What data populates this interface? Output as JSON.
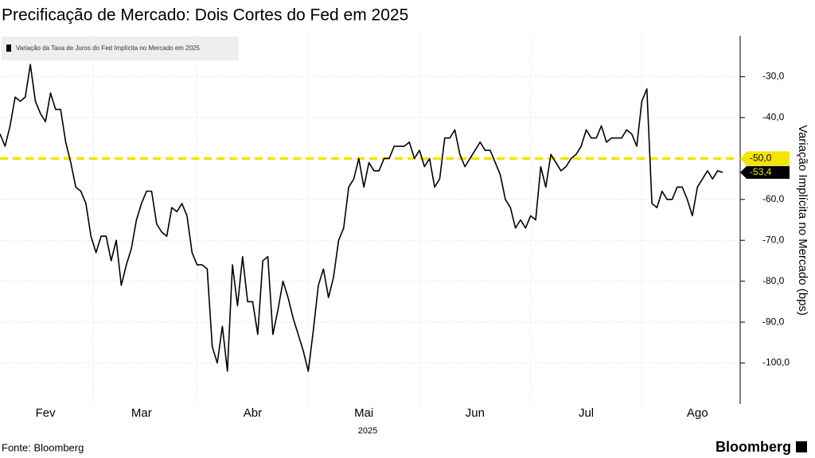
{
  "chart_data": {
    "type": "line",
    "title": "Precificação de Mercado: Dois Cortes do Fed em 2025",
    "y_label": "Variação Implícita no Mercado (bps)",
    "x_label": "2025",
    "source": "Fonte: Bloomberg",
    "brand": "Bloomberg",
    "categories": [
      null,
      null,
      null,
      null,
      null,
      null,
      null,
      null,
      null,
      "Fev",
      null,
      null,
      null,
      null,
      null,
      null,
      null,
      null,
      null,
      null,
      null,
      null,
      null,
      null,
      null,
      null,
      null,
      null,
      "Mar",
      null,
      null,
      null,
      null,
      null,
      null,
      null,
      null,
      null,
      null,
      null,
      null,
      null,
      null,
      null,
      null,
      null,
      null,
      null,
      null,
      null,
      "Abr",
      null,
      null,
      null,
      null,
      null,
      null,
      null,
      null,
      null,
      null,
      null,
      null,
      null,
      null,
      null,
      null,
      null,
      null,
      null,
      null,
      null,
      "Mai",
      null,
      null,
      null,
      null,
      null,
      null,
      null,
      null,
      null,
      null,
      null,
      null,
      null,
      null,
      null,
      null,
      null,
      null,
      null,
      null,
      null,
      "Jun",
      null,
      null,
      null,
      null,
      null,
      null,
      null,
      null,
      null,
      null,
      null,
      null,
      null,
      null,
      null,
      null,
      null,
      null,
      null,
      null,
      null,
      "Jul",
      null,
      null,
      null,
      null,
      null,
      null,
      null,
      null,
      null,
      null,
      null,
      null,
      null,
      null,
      null,
      null,
      null,
      null,
      null,
      null,
      null,
      "Ago",
      null,
      null,
      null,
      null,
      null
    ],
    "series": [
      {
        "name": "Variação da Taxa de Juros do Fed Implícita no Mercado em 2025",
        "color": "#000000",
        "values": [
          -44,
          -47,
          -42,
          -35,
          -36,
          -35,
          -27,
          -36,
          -39,
          -41,
          -34,
          -38,
          -38,
          -46,
          -51,
          -57,
          -58,
          -61,
          -69,
          -73,
          -69,
          -69,
          -75,
          -70,
          -81,
          -76,
          -72,
          -65,
          -61,
          -58,
          -58,
          -66,
          -68,
          -69,
          -62,
          -63,
          -61,
          -64,
          -73,
          -76,
          -76,
          -77,
          -96,
          -100,
          -91,
          -102,
          -76,
          -86,
          -74,
          -85,
          -85,
          -93,
          -75,
          -74,
          -93,
          -87,
          -80,
          -84,
          -89,
          -93,
          -97,
          -102,
          -92,
          -81,
          -77,
          -84,
          -79,
          -70,
          -67,
          -57,
          -55,
          -50,
          -57,
          -51,
          -53,
          -53,
          -50,
          -50,
          -47,
          -47,
          -47,
          -46,
          -50,
          -48,
          -52,
          -50,
          -57,
          -55,
          -45,
          -45,
          -43,
          -49,
          -52,
          -50,
          -48,
          -46,
          -48,
          -48,
          -51,
          -54,
          -60,
          -62,
          -67,
          -65,
          -67,
          -64,
          -65,
          -52,
          -57,
          -49,
          -51,
          -53,
          -52,
          -50,
          -49,
          -47,
          -43,
          -45,
          -45,
          -42,
          -46,
          -45,
          -45,
          -45,
          -43,
          -44,
          -47,
          -36,
          -33,
          -61,
          -62,
          -58,
          -60,
          -60,
          -57,
          -57,
          -60,
          -64,
          -57,
          -55,
          -53,
          -55,
          -53,
          -53.4
        ],
        "last_label": "-53,4",
        "last_label_color": "#f5e400"
      }
    ],
    "reference_line": {
      "value": -50,
      "label": "-50,0",
      "color": "#f5e400"
    },
    "ylim": [
      -110,
      -20
    ],
    "yticks": [
      {
        "value": -30,
        "label": "-30,0"
      },
      {
        "value": -40,
        "label": "-40,0"
      },
      {
        "value": -50,
        "label": "-50,0"
      },
      {
        "value": -60,
        "label": "-60,0"
      },
      {
        "value": -70,
        "label": "-70,0"
      },
      {
        "value": -80,
        "label": "-80,0"
      },
      {
        "value": -90,
        "label": "-90,0"
      },
      {
        "value": -100,
        "label": "-100,0"
      }
    ],
    "y_axis_side": "right",
    "grid": true
  }
}
